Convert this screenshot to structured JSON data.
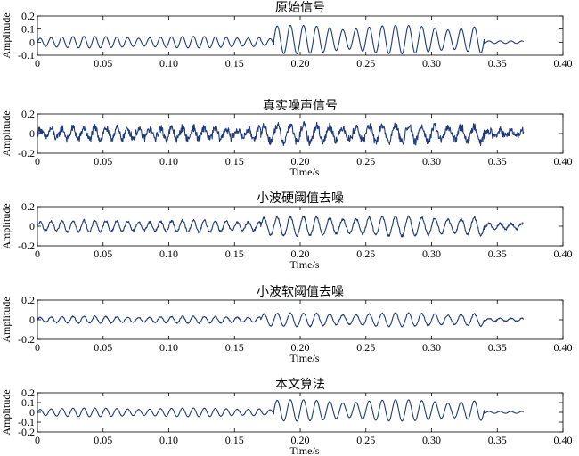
{
  "chart_data": [
    {
      "type": "line",
      "title": "原始信号",
      "xlabel": "",
      "ylabel": "Amplitude",
      "xlim": [
        0,
        0.4
      ],
      "ylim": [
        -0.1,
        0.2
      ],
      "x_ticks": [
        0,
        0.05,
        0.1,
        0.15,
        0.2,
        0.25,
        0.3,
        0.35,
        0.4
      ],
      "x_tick_labels": [
        "0",
        "0.05",
        "0.10",
        "0.15",
        "0.20",
        "0.25",
        "0.30",
        "0.35",
        "0.40"
      ],
      "y_ticks": [
        -0.1,
        0,
        0.1,
        0.2
      ],
      "y_tick_labels": [
        "-0.1",
        "0",
        "0.1",
        "0.2"
      ],
      "grid": false,
      "series": [
        {
          "color": "#1f3a78",
          "noise": 0.0,
          "segments": [
            {
              "x_start": 0.0,
              "x_end": 0.17,
              "amplitude": 0.045,
              "mean": 0.0,
              "freq": 120
            },
            {
              "x_start": 0.17,
              "x_end": 0.18,
              "amplitude": 0.03,
              "mean": 0.0,
              "freq": 120
            },
            {
              "x_start": 0.18,
              "x_end": 0.34,
              "amplitude": 0.11,
              "mean": 0.02,
              "freq": 100
            },
            {
              "x_start": 0.34,
              "x_end": 0.37,
              "amplitude": 0.01,
              "mean": 0.0,
              "freq": 120
            }
          ]
        }
      ]
    },
    {
      "type": "line",
      "title": "真实噪声信号",
      "xlabel": "Time/s",
      "ylabel": "Amplitude",
      "xlim": [
        0,
        0.4
      ],
      "ylim": [
        -0.2,
        0.2
      ],
      "x_ticks": [
        0,
        0.05,
        0.1,
        0.15,
        0.2,
        0.25,
        0.3,
        0.35,
        0.4
      ],
      "x_tick_labels": [
        "0",
        "0.05",
        "0.10",
        "0.15",
        "0.20",
        "0.25",
        "0.30",
        "0.35",
        "0.40"
      ],
      "y_ticks": [
        -0.2,
        0,
        0.2
      ],
      "y_tick_labels": [
        "-0.2",
        "0",
        "0.2"
      ],
      "grid": false,
      "series": [
        {
          "color": "#1f3a78",
          "noise": 0.04,
          "segments": [
            {
              "x_start": 0.0,
              "x_end": 0.17,
              "amplitude": 0.06,
              "mean": 0.0,
              "freq": 120
            },
            {
              "x_start": 0.17,
              "x_end": 0.34,
              "amplitude": 0.09,
              "mean": 0.0,
              "freq": 100
            },
            {
              "x_start": 0.34,
              "x_end": 0.37,
              "amplitude": 0.03,
              "mean": 0.0,
              "freq": 120
            }
          ]
        }
      ]
    },
    {
      "type": "line",
      "title": "小波硬阈值去噪",
      "xlabel": "Time/s",
      "ylabel": "Amplitude",
      "xlim": [
        0,
        0.4
      ],
      "ylim": [
        -0.2,
        0.2
      ],
      "x_ticks": [
        0,
        0.05,
        0.1,
        0.15,
        0.2,
        0.25,
        0.3,
        0.35,
        0.4
      ],
      "x_tick_labels": [
        "0",
        "0.05",
        "0.10",
        "0.15",
        "0.20",
        "0.25",
        "0.30",
        "0.35",
        "0.40"
      ],
      "y_ticks": [
        -0.2,
        0,
        0.2
      ],
      "y_tick_labels": [
        "-0.2",
        "0",
        "0.2"
      ],
      "grid": false,
      "series": [
        {
          "color": "#1f3a78",
          "noise": 0.012,
          "segments": [
            {
              "x_start": 0.0,
              "x_end": 0.17,
              "amplitude": 0.06,
              "mean": 0.0,
              "freq": 120
            },
            {
              "x_start": 0.17,
              "x_end": 0.34,
              "amplitude": 0.1,
              "mean": 0.0,
              "freq": 100
            },
            {
              "x_start": 0.34,
              "x_end": 0.37,
              "amplitude": 0.03,
              "mean": 0.0,
              "freq": 120
            }
          ]
        }
      ]
    },
    {
      "type": "line",
      "title": "小波软阈值去噪",
      "xlabel": "Time/s",
      "ylabel": "Amplitude",
      "xlim": [
        0,
        0.4
      ],
      "ylim": [
        -0.2,
        0.2
      ],
      "x_ticks": [
        0,
        0.05,
        0.1,
        0.15,
        0.2,
        0.25,
        0.3,
        0.35,
        0.4
      ],
      "x_tick_labels": [
        "0",
        "0.05",
        "0.10",
        "0.15",
        "0.20",
        "0.25",
        "0.30",
        "0.35",
        "0.40"
      ],
      "y_ticks": [
        -0.2,
        0,
        0.2
      ],
      "y_tick_labels": [
        "-0.2",
        "0",
        "0.2"
      ],
      "grid": false,
      "series": [
        {
          "color": "#1f3a78",
          "noise": 0.006,
          "segments": [
            {
              "x_start": 0.0,
              "x_end": 0.17,
              "amplitude": 0.035,
              "mean": 0.0,
              "freq": 120
            },
            {
              "x_start": 0.17,
              "x_end": 0.34,
              "amplitude": 0.07,
              "mean": 0.0,
              "freq": 100
            },
            {
              "x_start": 0.34,
              "x_end": 0.37,
              "amplitude": 0.015,
              "mean": 0.0,
              "freq": 120
            }
          ]
        }
      ]
    },
    {
      "type": "line",
      "title": "本文算法",
      "xlabel": "Time/s",
      "ylabel": "Amplitude",
      "xlim": [
        0,
        0.4
      ],
      "ylim": [
        -0.2,
        0.2
      ],
      "x_ticks": [
        0,
        0.05,
        0.1,
        0.15,
        0.2,
        0.25,
        0.3,
        0.35,
        0.4
      ],
      "x_tick_labels": [
        "0",
        "0.05",
        "0.10",
        "0.15",
        "0.20",
        "0.25",
        "0.30",
        "0.35",
        "0.40"
      ],
      "y_ticks": [
        -0.2,
        -0.1,
        0,
        0.1,
        0.2
      ],
      "y_tick_labels": [
        "-0.2",
        "-0.1",
        "0",
        "0.1",
        "0.2"
      ],
      "grid": false,
      "series": [
        {
          "color": "#1f3a78",
          "noise": 0.0,
          "segments": [
            {
              "x_start": 0.0,
              "x_end": 0.17,
              "amplitude": 0.045,
              "mean": 0.0,
              "freq": 120
            },
            {
              "x_start": 0.17,
              "x_end": 0.18,
              "amplitude": 0.03,
              "mean": 0.0,
              "freq": 120
            },
            {
              "x_start": 0.18,
              "x_end": 0.34,
              "amplitude": 0.11,
              "mean": 0.02,
              "freq": 100
            },
            {
              "x_start": 0.34,
              "x_end": 0.37,
              "amplitude": 0.01,
              "mean": 0.0,
              "freq": 120
            }
          ]
        }
      ]
    }
  ]
}
